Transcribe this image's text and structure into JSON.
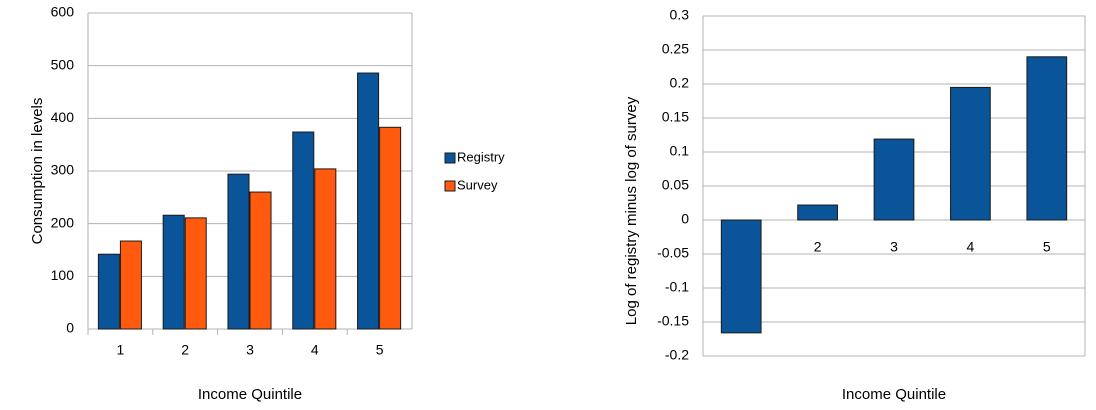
{
  "chart_data": [
    {
      "type": "bar",
      "x_label": "Income Quintile",
      "y_label": "Consumption in levels",
      "categories": [
        "1",
        "2",
        "3",
        "4",
        "5"
      ],
      "series": [
        {
          "name": "Registry",
          "color": "#0a5599",
          "values": [
            142,
            216,
            294,
            374,
            486
          ]
        },
        {
          "name": "Survey",
          "color": "#ff5a0e",
          "values": [
            167,
            211,
            260,
            304,
            383
          ]
        }
      ],
      "ylim": [
        0,
        600
      ],
      "yticks": [
        0,
        100,
        200,
        300,
        400,
        500,
        600
      ],
      "grid": true,
      "legend": "right"
    },
    {
      "type": "bar",
      "x_label": "Income Quintile",
      "y_label": "Log of registry minus log of survey",
      "categories": [
        "1",
        "2",
        "3",
        "4",
        "5"
      ],
      "series": [
        {
          "color": "#0a5599",
          "values": [
            -0.166,
            0.022,
            0.119,
            0.195,
            0.24
          ]
        }
      ],
      "ylim": [
        -0.2,
        0.3
      ],
      "yticks": [
        -0.2,
        -0.15,
        -0.1,
        -0.05,
        0,
        0.05,
        0.1,
        0.15,
        0.2,
        0.25,
        0.3
      ],
      "grid": true
    }
  ]
}
